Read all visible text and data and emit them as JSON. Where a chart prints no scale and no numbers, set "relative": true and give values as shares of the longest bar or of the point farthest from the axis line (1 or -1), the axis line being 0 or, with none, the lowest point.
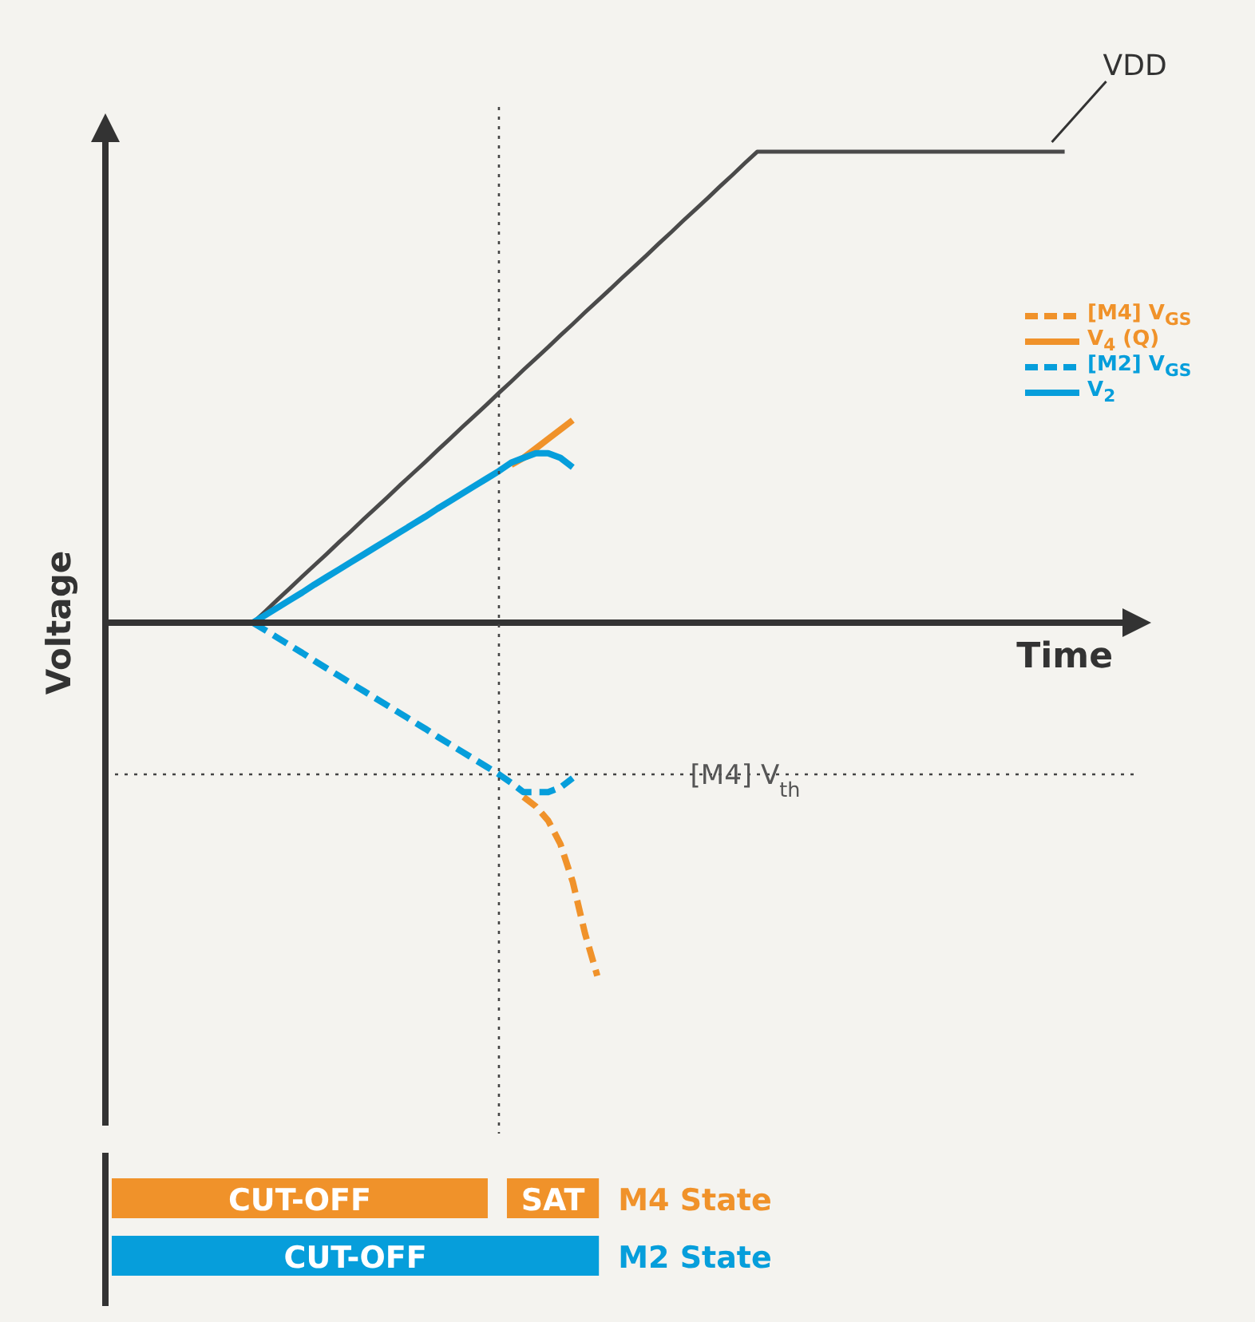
{
  "chart_data": [
    {
      "type": "line",
      "relative": true,
      "xlabel": "Time",
      "ylabel": "Voltage",
      "tick_labels": false,
      "marker": "none",
      "legend": "right",
      "categories": [
        null,
        null,
        null,
        null,
        null,
        null,
        null,
        null,
        null,
        null,
        null,
        null,
        null,
        null,
        null,
        null,
        null,
        null,
        null,
        null,
        null,
        null,
        null,
        null,
        null,
        null,
        null,
        null,
        null,
        null,
        null,
        null,
        null,
        null,
        null,
        null,
        null,
        null,
        null,
        null,
        null,
        null,
        null,
        null,
        null,
        null,
        null,
        null,
        null,
        null,
        null,
        null,
        null,
        null,
        null,
        null,
        null,
        null,
        null,
        null,
        null,
        null,
        null,
        null,
        null,
        null,
        null,
        null,
        null,
        null,
        null,
        null,
        null,
        null,
        null,
        null,
        null,
        null,
        null,
        null,
        null,
        null,
        null,
        null,
        null
      ],
      "series": [
        {
          "name": "VDD",
          "color": "#4a4a4a",
          "values": [
            null,
            null,
            null,
            null,
            null,
            null,
            null,
            null,
            null,
            null,
            null,
            null,
            0,
            0.024,
            0.049,
            0.073,
            0.098,
            0.122,
            0.146,
            0.171,
            0.195,
            0.22,
            0.244,
            0.268,
            0.293,
            0.317,
            0.341,
            0.366,
            0.39,
            0.415,
            0.439,
            0.463,
            0.488,
            0.512,
            0.537,
            0.561,
            0.585,
            0.61,
            0.634,
            0.659,
            0.683,
            0.707,
            0.732,
            0.756,
            0.78,
            0.805,
            0.829,
            0.854,
            0.878,
            0.902,
            0.927,
            0.951,
            0.976,
            1,
            1,
            1,
            1,
            1,
            1,
            1,
            1,
            1,
            1,
            1,
            1,
            1,
            1,
            1,
            1,
            1,
            1,
            1,
            1,
            1,
            1,
            1,
            1,
            1,
            1,
            null,
            null,
            null,
            null,
            null,
            null
          ]
        },
        {
          "name": "[M4] V$_{GS}$",
          "color": "#f0922a",
          "line_style": "dashed",
          "values": [
            null,
            null,
            null,
            null,
            null,
            null,
            null,
            null,
            null,
            null,
            null,
            null,
            null,
            null,
            null,
            null,
            null,
            null,
            null,
            null,
            null,
            null,
            null,
            null,
            null,
            null,
            null,
            null,
            null,
            null,
            null,
            null,
            null,
            null,
            -0.37,
            -0.39,
            -0.42,
            -0.47,
            -0.55,
            -0.66,
            -0.75,
            null,
            null,
            null,
            null,
            null,
            null,
            null,
            null,
            null,
            null,
            null,
            null,
            null,
            null,
            null,
            null,
            null,
            null,
            null,
            null,
            null,
            null,
            null,
            null,
            null,
            null,
            null,
            null,
            null,
            null,
            null,
            null,
            null,
            null,
            null,
            null,
            null,
            null,
            null,
            null,
            null,
            null,
            null,
            null
          ]
        },
        {
          "name": "V$_{4}$ (Q)",
          "color": "#f0922a",
          "values": [
            null,
            null,
            null,
            null,
            null,
            null,
            null,
            null,
            null,
            null,
            null,
            null,
            null,
            null,
            null,
            null,
            null,
            null,
            null,
            null,
            null,
            null,
            null,
            null,
            null,
            null,
            null,
            null,
            null,
            null,
            null,
            null,
            null,
            0.335,
            0.35,
            0.37,
            0.39,
            0.41,
            0.43,
            null,
            null,
            null,
            null,
            null,
            null,
            null,
            null,
            null,
            null,
            null,
            null,
            null,
            null,
            null,
            null,
            null,
            null,
            null,
            null,
            null,
            null,
            null,
            null,
            null,
            null,
            null,
            null,
            null,
            null,
            null,
            null,
            null,
            null,
            null,
            null,
            null,
            null,
            null,
            null,
            null,
            null,
            null,
            null,
            null,
            null
          ]
        },
        {
          "name": "[M2] V$_{GS}$",
          "color": "#069edb",
          "line_style": "dashed",
          "values": [
            null,
            null,
            null,
            null,
            null,
            null,
            null,
            null,
            null,
            null,
            null,
            null,
            0,
            -0.016,
            -0.032,
            -0.048,
            -0.064,
            -0.081,
            -0.097,
            -0.113,
            -0.129,
            -0.145,
            -0.161,
            -0.177,
            -0.193,
            -0.209,
            -0.225,
            -0.242,
            -0.258,
            -0.274,
            -0.29,
            -0.306,
            -0.322,
            -0.34,
            -0.36,
            -0.36,
            -0.36,
            -0.35,
            -0.33,
            null,
            null,
            null,
            null,
            null,
            null,
            null,
            null,
            null,
            null,
            null,
            null,
            null,
            null,
            null,
            null,
            null,
            null,
            null,
            null,
            null,
            null,
            null,
            null,
            null,
            null,
            null,
            null,
            null,
            null,
            null,
            null,
            null,
            null,
            null,
            null,
            null,
            null,
            null,
            null,
            null,
            null,
            null,
            null,
            null,
            null
          ]
        },
        {
          "name": "V$_{2}$",
          "color": "#069edb",
          "values": [
            null,
            null,
            null,
            null,
            null,
            null,
            null,
            null,
            null,
            null,
            null,
            null,
            0,
            0.016,
            0.032,
            0.048,
            0.064,
            0.081,
            0.097,
            0.113,
            0.129,
            0.145,
            0.161,
            0.177,
            0.193,
            0.209,
            0.225,
            0.242,
            0.258,
            0.274,
            0.29,
            0.306,
            0.322,
            0.34,
            0.35,
            0.36,
            0.36,
            0.35,
            0.33,
            null,
            null,
            null,
            null,
            null,
            null,
            null,
            null,
            null,
            null,
            null,
            null,
            null,
            null,
            null,
            null,
            null,
            null,
            null,
            null,
            null,
            null,
            null,
            null,
            null,
            null,
            null,
            null,
            null,
            null,
            null,
            null,
            null,
            null,
            null,
            null,
            null,
            null,
            null,
            null,
            null,
            null,
            null,
            null,
            null,
            null
          ]
        }
      ],
      "ref_lines": [
        {
          "axis": "y",
          "value": -0.322,
          "label": "[M4] V$_{th}$",
          "line_style": "dotted"
        }
      ]
    },
    {
      "type": "other",
      "categories": [
        "M4 State",
        "M2 State"
      ],
      "colors": [
        "#f0922a",
        "#069edb"
      ],
      "annotations": [
        "CUT-OFF",
        "SAT",
        "CUT-OFF"
      ]
    }
  ]
}
